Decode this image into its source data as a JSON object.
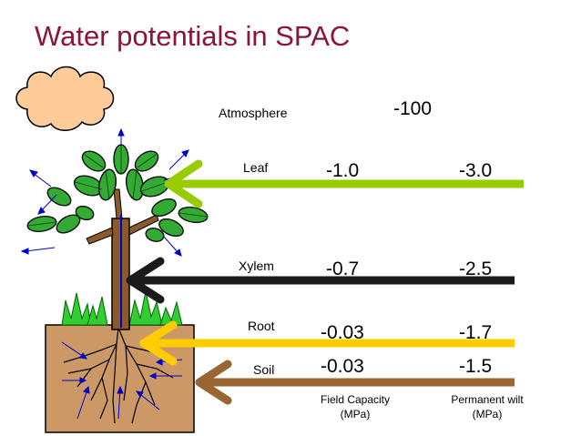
{
  "title": "Water potentials in SPAC",
  "rows": [
    {
      "label": "Atmosphere",
      "field_capacity": "-100",
      "permanent_wilt": ""
    },
    {
      "label": "Leaf",
      "field_capacity": "-1.0",
      "permanent_wilt": "-3.0"
    },
    {
      "label": "Xylem",
      "field_capacity": "-0.7",
      "permanent_wilt": "-2.5"
    },
    {
      "label": "Root",
      "field_capacity": "-0.03",
      "permanent_wilt": "-1.7"
    },
    {
      "label": "Soil",
      "field_capacity": "-0.03",
      "permanent_wilt": "-1.5"
    }
  ],
  "columns": {
    "field_capacity": {
      "line1": "Field Capacity",
      "line2": "(MPa)"
    },
    "permanent_wilt": {
      "line1": "Permanent wilt",
      "line2": "(MPa)"
    }
  },
  "colors": {
    "title": "#8B1538",
    "leaf_arrow": "#99CC00",
    "xylem_arrow": "#1A1A1A",
    "root_arrow": "#FFCC00",
    "soil_arrow": "#996633",
    "soil": "#CC9966",
    "cloud": "#FFCC99",
    "foliage": "#33AA33",
    "trunk": "#8B5A2B",
    "transpiration_arrows": "#0000CC"
  }
}
